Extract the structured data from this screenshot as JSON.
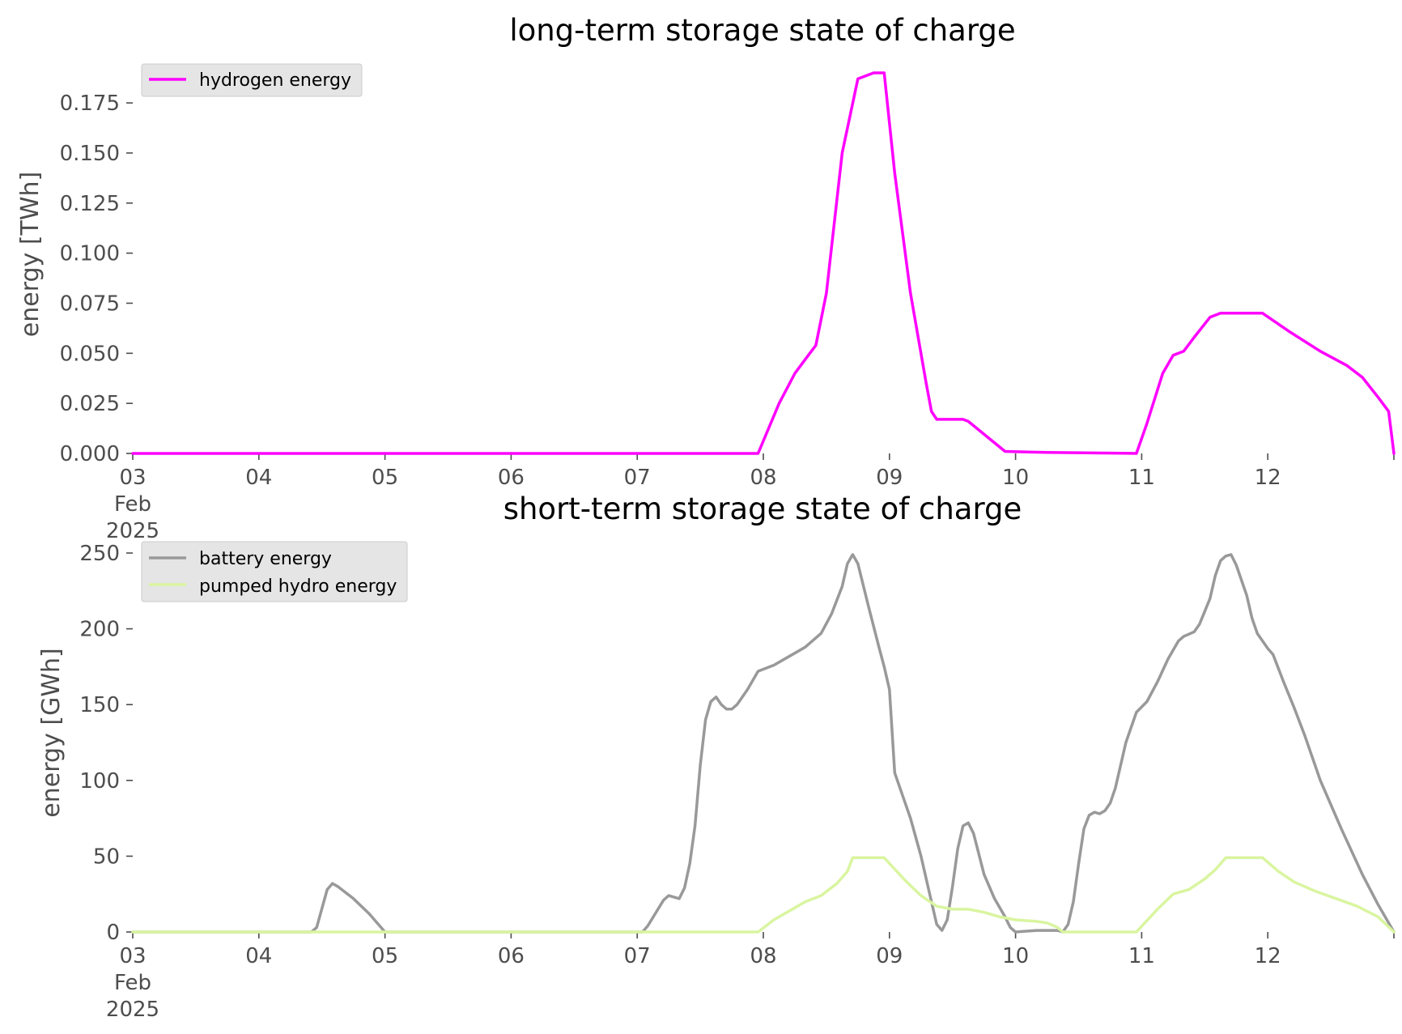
{
  "chart_data": [
    {
      "type": "line",
      "title": "long-term storage state of charge",
      "ylabel": "energy [TWh]",
      "xlabel": "",
      "x_range": [
        "2025-02-03",
        "2025-02-13"
      ],
      "x_tick_labels": [
        {
          "lines": [
            "03",
            "Feb",
            "2025"
          ]
        },
        {
          "lines": [
            "04"
          ]
        },
        {
          "lines": [
            "05"
          ]
        },
        {
          "lines": [
            "06"
          ]
        },
        {
          "lines": [
            "07"
          ]
        },
        {
          "lines": [
            "08"
          ]
        },
        {
          "lines": [
            "09"
          ]
        },
        {
          "lines": [
            "10"
          ]
        },
        {
          "lines": [
            "11"
          ]
        },
        {
          "lines": [
            "12"
          ]
        }
      ],
      "y_ticks": [
        "0.000",
        "0.025",
        "0.050",
        "0.075",
        "0.100",
        "0.125",
        "0.150",
        "0.175"
      ],
      "ylim": [
        0,
        0.19
      ],
      "grid": false,
      "legend": "top-left",
      "series": [
        {
          "name": "hydrogen energy",
          "color": "#ff00ff",
          "points": [
            [
              "2025-02-03 00:00",
              0
            ],
            [
              "2025-02-07 23:00",
              0
            ],
            [
              "2025-02-08 03:00",
              0.025
            ],
            [
              "2025-02-08 06:00",
              0.04
            ],
            [
              "2025-02-08 08:00",
              0.047
            ],
            [
              "2025-02-08 10:00",
              0.054
            ],
            [
              "2025-02-08 12:00",
              0.08
            ],
            [
              "2025-02-08 15:00",
              0.15
            ],
            [
              "2025-02-08 18:00",
              0.187
            ],
            [
              "2025-02-08 21:00",
              0.19
            ],
            [
              "2025-02-08 23:00",
              0.19
            ],
            [
              "2025-02-09 01:00",
              0.14
            ],
            [
              "2025-02-09 04:00",
              0.08
            ],
            [
              "2025-02-09 07:00",
              0.035
            ],
            [
              "2025-02-09 08:00",
              0.021
            ],
            [
              "2025-02-09 09:00",
              0.017
            ],
            [
              "2025-02-09 14:00",
              0.017
            ],
            [
              "2025-02-09 15:00",
              0.016
            ],
            [
              "2025-02-09 22:00",
              0.001
            ],
            [
              "2025-02-10 06:00",
              0.0005
            ],
            [
              "2025-02-10 23:00",
              0
            ],
            [
              "2025-02-11 01:00",
              0.015
            ],
            [
              "2025-02-11 04:00",
              0.04
            ],
            [
              "2025-02-11 06:00",
              0.049
            ],
            [
              "2025-02-11 08:00",
              0.051
            ],
            [
              "2025-02-11 10:00",
              0.058
            ],
            [
              "2025-02-11 13:00",
              0.068
            ],
            [
              "2025-02-11 15:00",
              0.07
            ],
            [
              "2025-02-11 23:00",
              0.07
            ],
            [
              "2025-02-12 04:00",
              0.061
            ],
            [
              "2025-02-12 10:00",
              0.051
            ],
            [
              "2025-02-12 15:00",
              0.044
            ],
            [
              "2025-02-12 18:00",
              0.038
            ],
            [
              "2025-02-12 21:00",
              0.028
            ],
            [
              "2025-02-12 23:00",
              0.021
            ],
            [
              "2025-02-13 00:00",
              0
            ]
          ]
        }
      ]
    },
    {
      "type": "line",
      "title": "short-term storage state of charge",
      "ylabel": "energy [GWh]",
      "xlabel": "",
      "x_range": [
        "2025-02-03",
        "2025-02-13"
      ],
      "x_tick_labels": [
        {
          "lines": [
            "03",
            "Feb",
            "2025"
          ]
        },
        {
          "lines": [
            "04"
          ]
        },
        {
          "lines": [
            "05"
          ]
        },
        {
          "lines": [
            "06"
          ]
        },
        {
          "lines": [
            "07"
          ]
        },
        {
          "lines": [
            "08"
          ]
        },
        {
          "lines": [
            "09"
          ]
        },
        {
          "lines": [
            "10"
          ]
        },
        {
          "lines": [
            "11"
          ]
        },
        {
          "lines": [
            "12"
          ]
        }
      ],
      "y_ticks": [
        "0",
        "50",
        "100",
        "150",
        "200",
        "250"
      ],
      "ylim": [
        0,
        250
      ],
      "grid": false,
      "legend": "top-left",
      "series": [
        {
          "name": "battery energy",
          "color": "#999999",
          "points": [
            [
              "2025-02-03 00:00",
              0
            ],
            [
              "2025-02-04 10:00",
              0
            ],
            [
              "2025-02-04 11:00",
              3
            ],
            [
              "2025-02-04 13:00",
              28
            ],
            [
              "2025-02-04 14:00",
              32
            ],
            [
              "2025-02-04 15:00",
              30
            ],
            [
              "2025-02-04 18:00",
              22
            ],
            [
              "2025-02-04 21:00",
              12
            ],
            [
              "2025-02-05 00:00",
              0
            ],
            [
              "2025-02-07 01:00",
              0
            ],
            [
              "2025-02-07 02:00",
              4
            ],
            [
              "2025-02-07 05:00",
              21
            ],
            [
              "2025-02-07 06:00",
              24
            ],
            [
              "2025-02-07 08:00",
              22
            ],
            [
              "2025-02-07 09:00",
              29
            ],
            [
              "2025-02-07 10:00",
              45
            ],
            [
              "2025-02-07 11:00",
              70
            ],
            [
              "2025-02-07 12:00",
              110
            ],
            [
              "2025-02-07 13:00",
              140
            ],
            [
              "2025-02-07 14:00",
              152
            ],
            [
              "2025-02-07 15:00",
              155
            ],
            [
              "2025-02-07 16:00",
              150
            ],
            [
              "2025-02-07 17:00",
              147
            ],
            [
              "2025-02-07 18:00",
              147
            ],
            [
              "2025-02-07 19:00",
              150
            ],
            [
              "2025-02-07 21:00",
              160
            ],
            [
              "2025-02-07 23:00",
              172
            ],
            [
              "2025-02-08 02:00",
              176
            ],
            [
              "2025-02-08 05:00",
              182
            ],
            [
              "2025-02-08 08:00",
              188
            ],
            [
              "2025-02-08 11:00",
              197
            ],
            [
              "2025-02-08 13:00",
              210
            ],
            [
              "2025-02-08 15:00",
              228
            ],
            [
              "2025-02-08 16:00",
              243
            ],
            [
              "2025-02-08 17:00",
              249
            ],
            [
              "2025-02-08 18:00",
              243
            ],
            [
              "2025-02-08 20:00",
              215
            ],
            [
              "2025-02-08 22:00",
              188
            ],
            [
              "2025-02-08 23:00",
              175
            ],
            [
              "2025-02-09 00:00",
              160
            ],
            [
              "2025-02-09 01:00",
              105
            ],
            [
              "2025-02-09 02:00",
              95
            ],
            [
              "2025-02-09 04:00",
              75
            ],
            [
              "2025-02-09 06:00",
              50
            ],
            [
              "2025-02-09 08:00",
              20
            ],
            [
              "2025-02-09 09:00",
              5
            ],
            [
              "2025-02-09 10:00",
              1
            ],
            [
              "2025-02-09 11:00",
              8
            ],
            [
              "2025-02-09 12:00",
              30
            ],
            [
              "2025-02-09 13:00",
              55
            ],
            [
              "2025-02-09 14:00",
              70
            ],
            [
              "2025-02-09 15:00",
              72
            ],
            [
              "2025-02-09 16:00",
              65
            ],
            [
              "2025-02-09 18:00",
              38
            ],
            [
              "2025-02-09 20:00",
              22
            ],
            [
              "2025-02-09 22:00",
              10
            ],
            [
              "2025-02-09 23:00",
              3
            ],
            [
              "2025-02-10 00:00",
              0
            ],
            [
              "2025-02-10 04:00",
              1
            ],
            [
              "2025-02-10 08:00",
              1
            ],
            [
              "2025-02-10 09:00",
              0
            ],
            [
              "2025-02-10 10:00",
              5
            ],
            [
              "2025-02-10 11:00",
              20
            ],
            [
              "2025-02-10 12:00",
              45
            ],
            [
              "2025-02-10 13:00",
              68
            ],
            [
              "2025-02-10 14:00",
              77
            ],
            [
              "2025-02-10 15:00",
              79
            ],
            [
              "2025-02-10 16:00",
              78
            ],
            [
              "2025-02-10 17:00",
              80
            ],
            [
              "2025-02-10 18:00",
              85
            ],
            [
              "2025-02-10 19:00",
              95
            ],
            [
              "2025-02-10 21:00",
              125
            ],
            [
              "2025-02-10 23:00",
              145
            ],
            [
              "2025-02-11 01:00",
              152
            ],
            [
              "2025-02-11 03:00",
              165
            ],
            [
              "2025-02-11 05:00",
              180
            ],
            [
              "2025-02-11 07:00",
              192
            ],
            [
              "2025-02-11 08:00",
              195
            ],
            [
              "2025-02-11 10:00",
              198
            ],
            [
              "2025-02-11 11:00",
              203
            ],
            [
              "2025-02-11 13:00",
              220
            ],
            [
              "2025-02-11 14:00",
              235
            ],
            [
              "2025-02-11 15:00",
              245
            ],
            [
              "2025-02-11 16:00",
              248
            ],
            [
              "2025-02-11 17:00",
              249
            ],
            [
              "2025-02-11 18:00",
              242
            ],
            [
              "2025-02-11 20:00",
              222
            ],
            [
              "2025-02-11 21:00",
              207
            ],
            [
              "2025-02-11 22:00",
              197
            ],
            [
              "2025-02-12 00:00",
              187
            ],
            [
              "2025-02-12 01:00",
              183
            ],
            [
              "2025-02-12 03:00",
              165
            ],
            [
              "2025-02-12 05:00",
              148
            ],
            [
              "2025-02-12 07:00",
              130
            ],
            [
              "2025-02-12 10:00",
              100
            ],
            [
              "2025-02-12 14:00",
              68
            ],
            [
              "2025-02-12 18:00",
              38
            ],
            [
              "2025-02-12 21:00",
              18
            ],
            [
              "2025-02-13 00:00",
              0
            ]
          ]
        },
        {
          "name": "pumped hydro energy",
          "color": "#d9f5a0",
          "points": [
            [
              "2025-02-03 00:00",
              0
            ],
            [
              "2025-02-07 23:00",
              0
            ],
            [
              "2025-02-08 02:00",
              8
            ],
            [
              "2025-02-08 05:00",
              14
            ],
            [
              "2025-02-08 08:00",
              20
            ],
            [
              "2025-02-08 11:00",
              24
            ],
            [
              "2025-02-08 14:00",
              32
            ],
            [
              "2025-02-08 16:00",
              40
            ],
            [
              "2025-02-08 17:00",
              49
            ],
            [
              "2025-02-08 23:00",
              49
            ],
            [
              "2025-02-09 03:00",
              34
            ],
            [
              "2025-02-09 06:00",
              24
            ],
            [
              "2025-02-09 09:00",
              17
            ],
            [
              "2025-02-09 12:00",
              15
            ],
            [
              "2025-02-09 15:00",
              15
            ],
            [
              "2025-02-09 18:00",
              13
            ],
            [
              "2025-02-09 21:00",
              10
            ],
            [
              "2025-02-10 00:00",
              8
            ],
            [
              "2025-02-10 04:00",
              7
            ],
            [
              "2025-02-10 06:00",
              6
            ],
            [
              "2025-02-10 08:00",
              3
            ],
            [
              "2025-02-10 09:00",
              0
            ],
            [
              "2025-02-10 23:00",
              0
            ],
            [
              "2025-02-11 03:00",
              15
            ],
            [
              "2025-02-11 06:00",
              25
            ],
            [
              "2025-02-11 09:00",
              28
            ],
            [
              "2025-02-11 12:00",
              35
            ],
            [
              "2025-02-11 14:00",
              41
            ],
            [
              "2025-02-11 16:00",
              49
            ],
            [
              "2025-02-11 23:00",
              49
            ],
            [
              "2025-02-12 02:00",
              40
            ],
            [
              "2025-02-12 05:00",
              33
            ],
            [
              "2025-02-12 09:00",
              27
            ],
            [
              "2025-02-12 13:00",
              22
            ],
            [
              "2025-02-12 17:00",
              17
            ],
            [
              "2025-02-12 21:00",
              10
            ],
            [
              "2025-02-13 00:00",
              0
            ]
          ]
        }
      ]
    }
  ]
}
